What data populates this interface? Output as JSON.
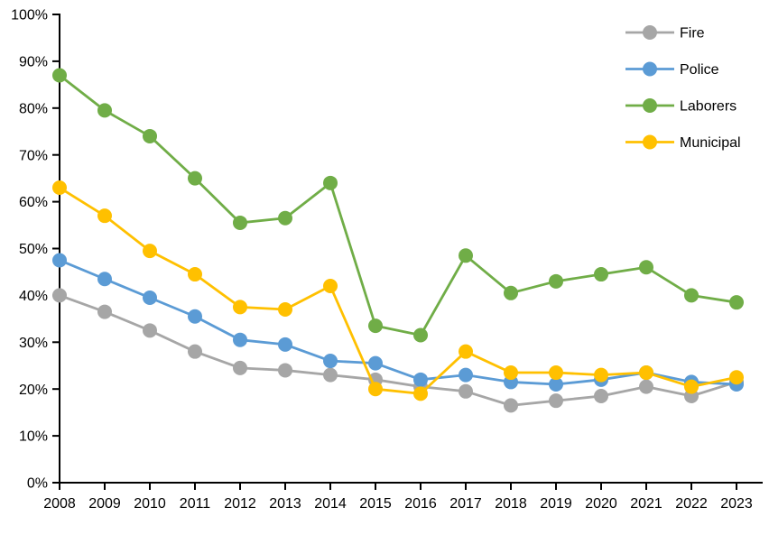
{
  "chart_data": {
    "type": "line",
    "title": "",
    "xlabel": "",
    "ylabel": "",
    "categories": [
      "2008",
      "2009",
      "2010",
      "2011",
      "2012",
      "2013",
      "2014",
      "2015",
      "2016",
      "2017",
      "2018",
      "2019",
      "2020",
      "2021",
      "2022",
      "2023"
    ],
    "series": [
      {
        "name": "Fire",
        "color": "#a6a6a6",
        "values": [
          40,
          36.5,
          32.5,
          28,
          24.5,
          24,
          23,
          22,
          20.5,
          19.5,
          16.5,
          17.5,
          18.5,
          20.5,
          18.5,
          21.5
        ]
      },
      {
        "name": "Police",
        "color": "#5b9bd5",
        "values": [
          47.5,
          43.5,
          39.5,
          35.5,
          30.5,
          29.5,
          26,
          25.5,
          22,
          23,
          21.5,
          21,
          22,
          23.5,
          21.5,
          21
        ]
      },
      {
        "name": "Laborers",
        "color": "#70ad47",
        "values": [
          87,
          79.5,
          74,
          65,
          55.5,
          56.5,
          64,
          33.5,
          31.5,
          48.5,
          40.5,
          43,
          44.5,
          46,
          40,
          38.5
        ]
      },
      {
        "name": "Municipal",
        "color": "#ffc000",
        "values": [
          63,
          57,
          49.5,
          44.5,
          37.5,
          37,
          42,
          20,
          19,
          28,
          23.5,
          23.5,
          23,
          23.5,
          20.5,
          22.5
        ]
      }
    ],
    "ylim": [
      0,
      100
    ],
    "y_tick_step": 10,
    "y_tick_labels": [
      "0%",
      "10%",
      "20%",
      "30%",
      "40%",
      "50%",
      "60%",
      "70%",
      "80%",
      "90%",
      "100%"
    ],
    "grid": false,
    "legend_position": "top-right",
    "axis_color": "#000000",
    "marker": "circle"
  }
}
